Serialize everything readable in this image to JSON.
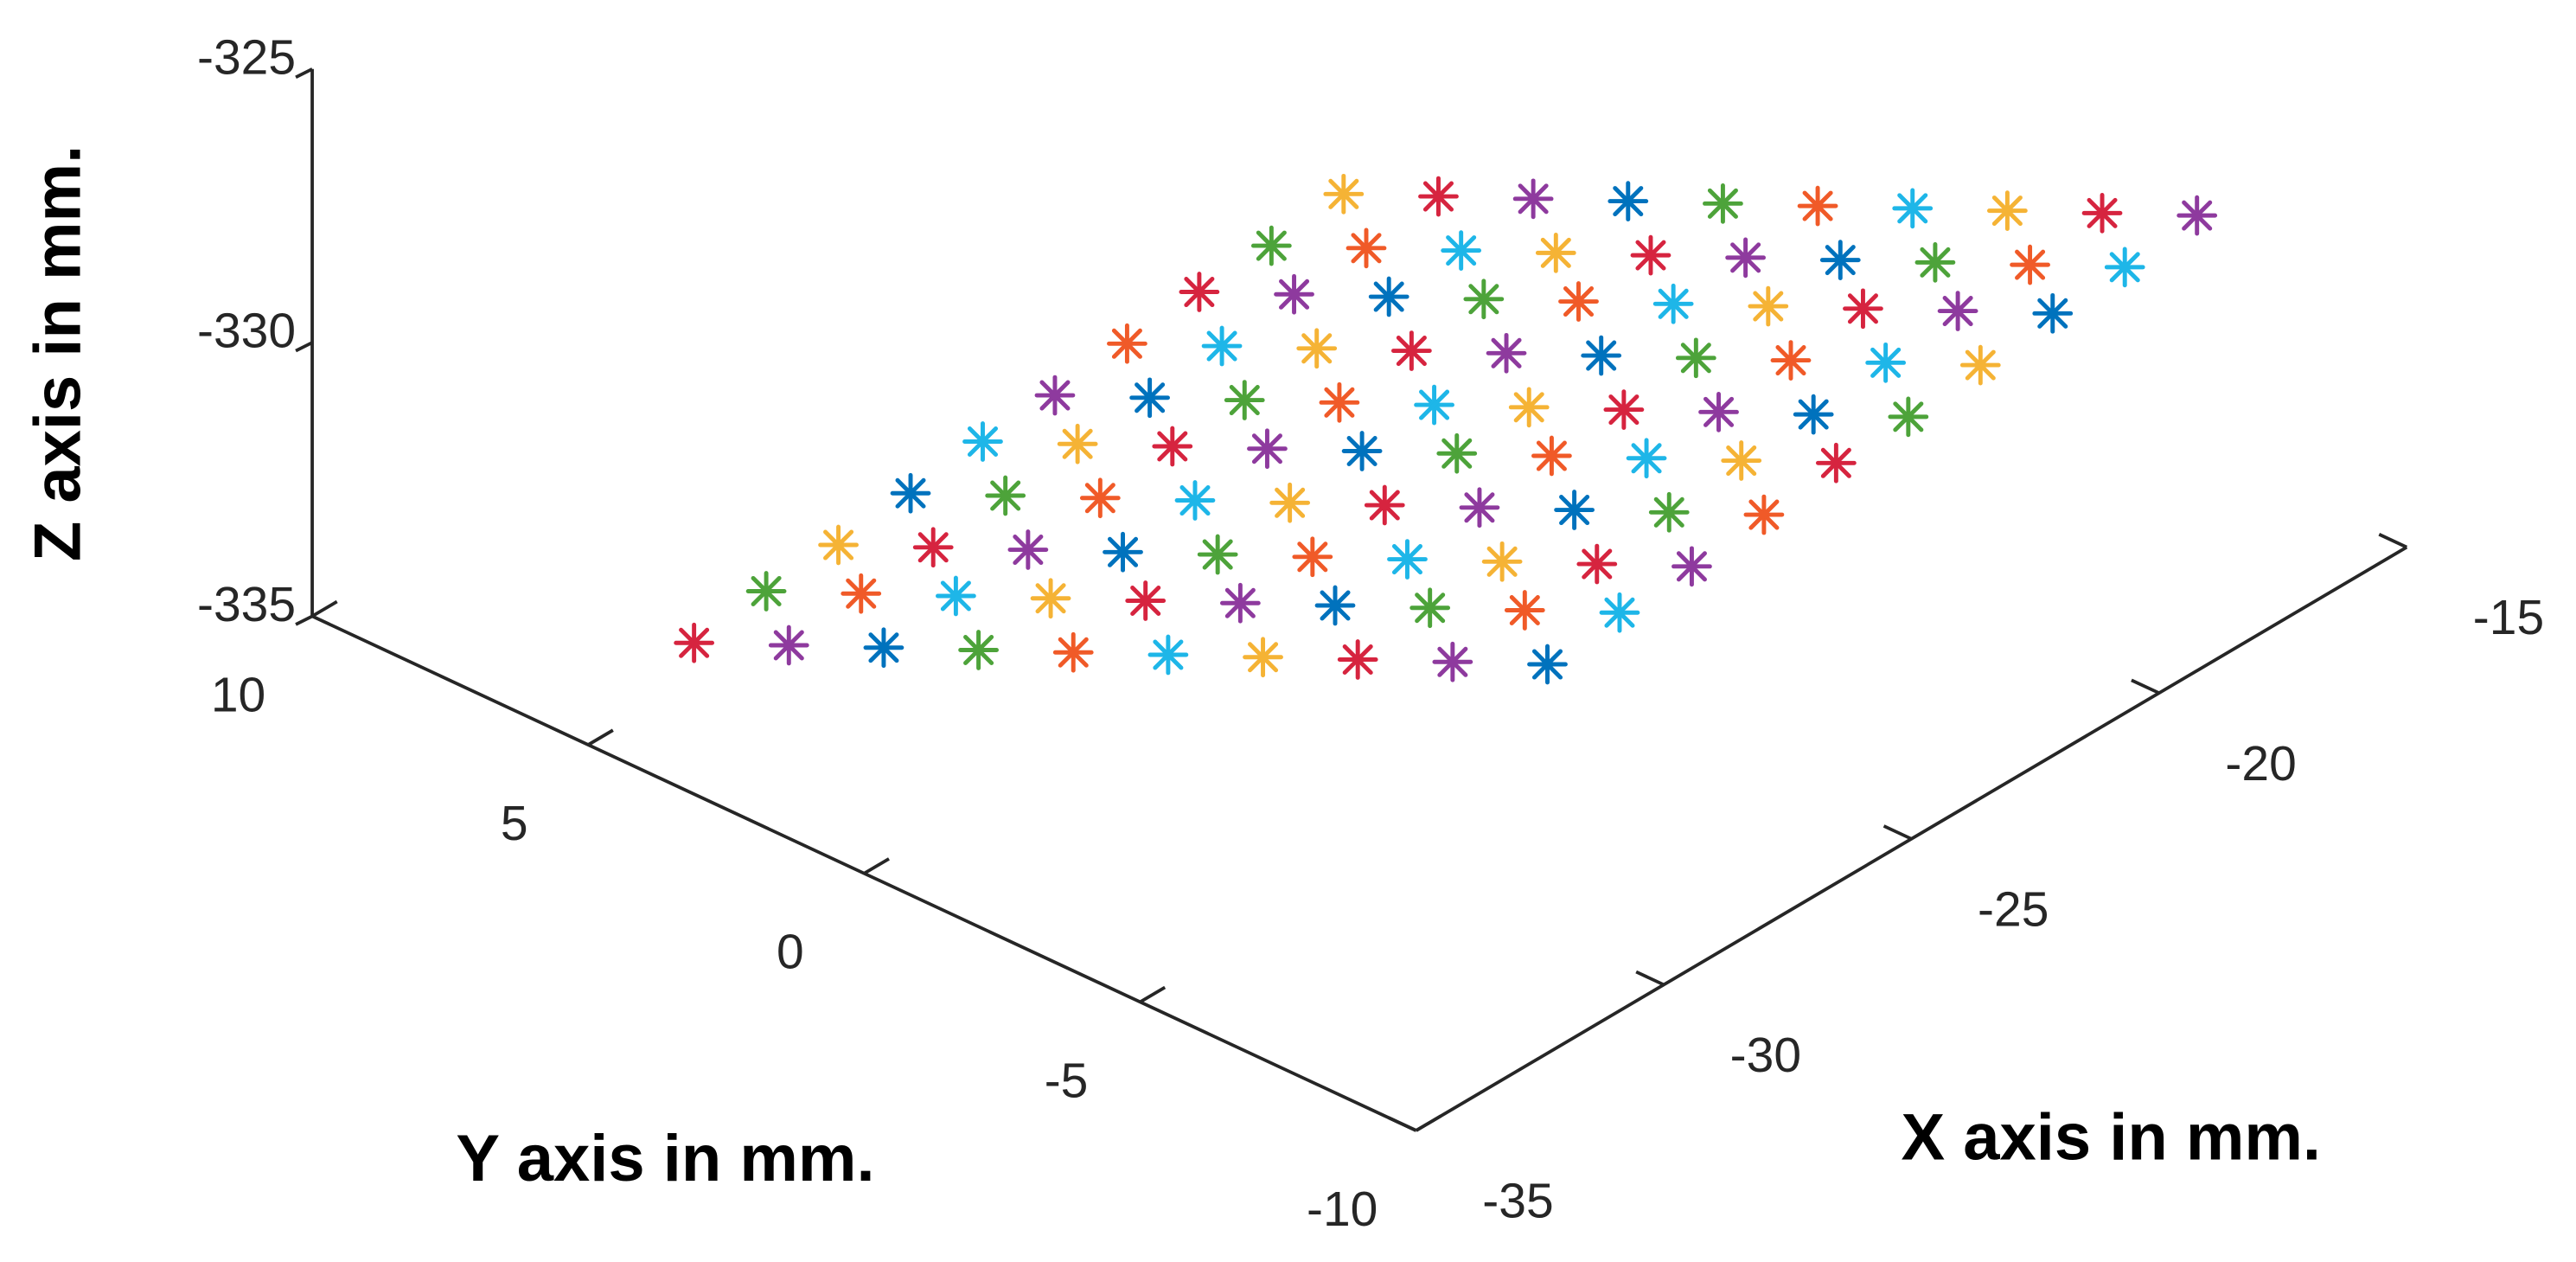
{
  "chart_data": {
    "type": "scatter3d",
    "xlabel": "X axis in mm.",
    "ylabel": "Y axis in mm.",
    "zlabel": "Z axis in mm.",
    "xlim": [
      -35,
      -15
    ],
    "ylim": [
      -10,
      10
    ],
    "zlim": [
      -335,
      -325
    ],
    "xticks": [
      -35,
      -30,
      -25,
      -20,
      -15
    ],
    "yticks": [
      -10,
      -5,
      0,
      5,
      10
    ],
    "zticks": [
      -335,
      -330,
      -325
    ],
    "marker": "*",
    "color_cycle": [
      "#d6243f",
      "#8e3a9e",
      "#0072bd",
      "#4da33a",
      "#f05a28",
      "#1eb6e8",
      "#f5b335"
    ],
    "x": [
      -34.2,
      -33.4,
      -32.6,
      -31.8,
      -31.0,
      -30.2,
      -29.4,
      -28.6,
      -27.8,
      -27.0,
      -33.3,
      -32.5,
      -31.7,
      -30.9,
      -30.1,
      -29.3,
      -28.5,
      -27.7,
      -26.9,
      -26.1,
      -32.4,
      -31.6,
      -30.8,
      -30.0,
      -29.2,
      -28.4,
      -27.6,
      -26.8,
      -26.0,
      -25.2,
      -31.5,
      -30.7,
      -29.9,
      -29.1,
      -28.3,
      -27.5,
      -26.7,
      -25.9,
      -25.1,
      -24.3,
      -30.6,
      -29.8,
      -29.0,
      -28.2,
      -27.4,
      -26.6,
      -25.8,
      -25.0,
      -24.2,
      -23.4,
      -29.7,
      -28.9,
      -28.1,
      -27.3,
      -26.5,
      -25.7,
      -24.9,
      -24.1,
      -23.3,
      -22.5,
      -28.8,
      -28.0,
      -27.2,
      -26.4,
      -25.6,
      -24.8,
      -24.0,
      -23.2,
      -22.4,
      -21.6,
      -27.9,
      -27.1,
      -26.3,
      -25.5,
      -24.7,
      -23.9,
      -23.1,
      -22.3,
      -21.5,
      -20.7,
      -27.0,
      -26.2,
      -25.4,
      -24.6,
      -23.8,
      -23.0,
      -22.2,
      -21.4,
      -20.6,
      -19.8,
      -26.1,
      -25.3,
      -24.5,
      -23.7,
      -22.9,
      -22.1,
      -21.3,
      -20.5,
      -19.7,
      -18.9
    ],
    "y": [
      3.8,
      2.8,
      1.8,
      0.8,
      -0.2,
      -1.2,
      -2.2,
      -3.2,
      -4.2,
      -5.2,
      3.3,
      2.3,
      1.3,
      0.3,
      -0.7,
      -1.7,
      -2.7,
      -3.7,
      -4.7,
      -5.7,
      2.8,
      1.8,
      0.8,
      -0.2,
      -1.2,
      -2.2,
      -3.2,
      -4.2,
      -5.2,
      -6.2,
      2.3,
      1.3,
      0.3,
      -0.7,
      -1.7,
      -2.7,
      -3.7,
      -4.7,
      -5.7,
      -6.7,
      1.8,
      0.8,
      -0.2,
      -1.2,
      -2.2,
      -3.2,
      -4.2,
      -5.2,
      -6.2,
      -7.2,
      1.3,
      0.3,
      -0.7,
      -1.7,
      -2.7,
      -3.7,
      -4.7,
      -5.7,
      -6.7,
      -7.7,
      0.8,
      -0.2,
      -1.2,
      -2.2,
      -3.2,
      -4.2,
      -5.2,
      -6.2,
      -7.2,
      -8.2,
      0.3,
      -0.7,
      -1.7,
      -2.7,
      -3.7,
      -4.7,
      -5.7,
      -6.7,
      -7.7,
      -8.7,
      -0.2,
      -1.2,
      -2.2,
      -3.2,
      -4.2,
      -5.2,
      -6.2,
      -7.2,
      -8.2,
      -9.2,
      -0.7,
      -1.7,
      -2.7,
      -3.7,
      -4.7,
      -5.7,
      -6.7,
      -7.7,
      -8.7,
      -9.7
    ],
    "z": [
      -333,
      -333,
      -333,
      -333,
      -333,
      -333,
      -333,
      -333,
      -333,
      -333,
      -332.3,
      -332.3,
      -332.3,
      -332.3,
      -332.3,
      -332.3,
      -332.3,
      -332.3,
      -332.3,
      -332.3,
      -331.7,
      -331.7,
      -331.7,
      -331.7,
      -331.7,
      -331.7,
      -331.7,
      -331.7,
      -331.7,
      -331.7,
      -331,
      -331,
      -331,
      -331,
      -331,
      -331,
      -331,
      -331,
      -331,
      -331,
      -330.3,
      -330.3,
      -330.3,
      -330.3,
      -330.3,
      -330.3,
      -330.3,
      -330.3,
      -330.3,
      -330.3,
      -329.7,
      -329.7,
      -329.7,
      -329.7,
      -329.7,
      -329.7,
      -329.7,
      -329.7,
      -329.7,
      -329.7,
      -329,
      -329,
      -329,
      -329,
      -329,
      -329,
      -329,
      -329,
      -329,
      -329,
      -328.3,
      -328.3,
      -328.3,
      -328.3,
      -328.3,
      -328.3,
      -328.3,
      -328.3,
      -328.3,
      -328.3,
      -327.7,
      -327.7,
      -327.7,
      -327.7,
      -327.7,
      -327.7,
      -327.7,
      -327.7,
      -327.7,
      -327.7,
      -327,
      -327,
      -327,
      -327,
      -327,
      -327,
      -327,
      -327,
      -327,
      -327
    ]
  }
}
